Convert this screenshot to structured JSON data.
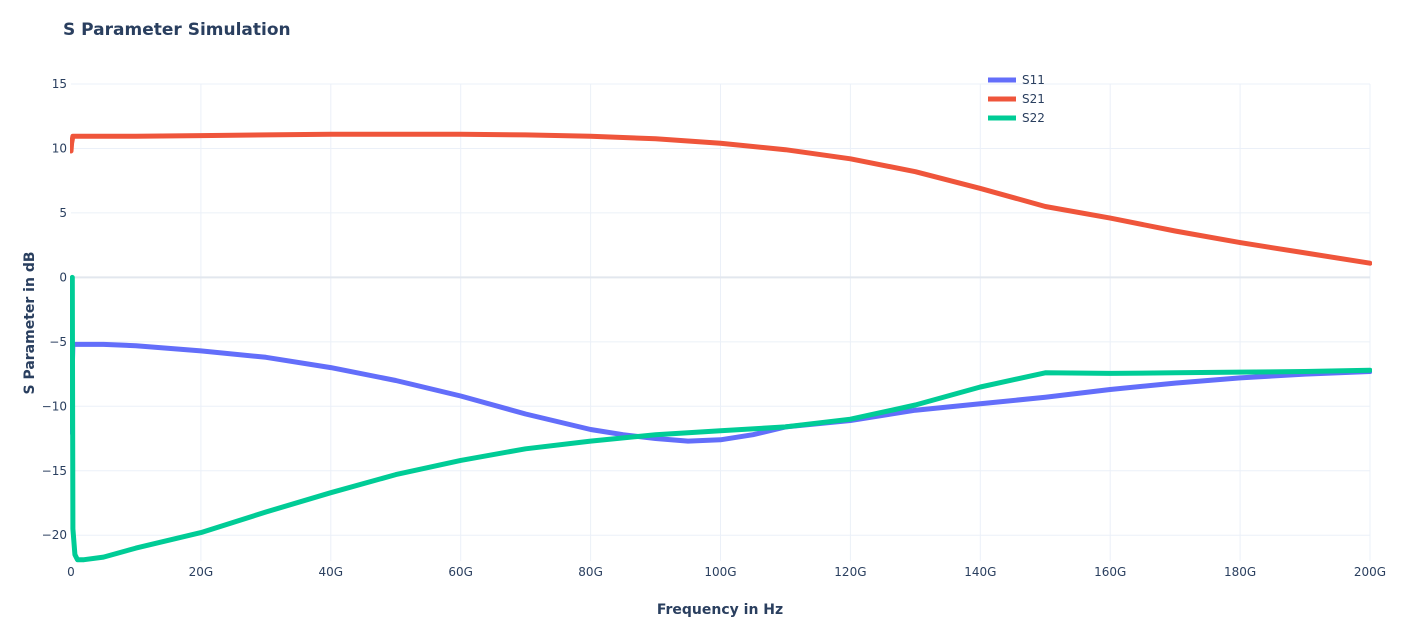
{
  "chart_data": {
    "type": "line",
    "title": "S Parameter Simulation",
    "xlabel": "Frequency in Hz",
    "ylabel": "S Parameter in dB",
    "xlim": [
      0,
      200
    ],
    "ylim": [
      -22,
      15
    ],
    "x_ticks": [
      {
        "value": 0,
        "label": "0"
      },
      {
        "value": 20,
        "label": "20G"
      },
      {
        "value": 40,
        "label": "40G"
      },
      {
        "value": 60,
        "label": "60G"
      },
      {
        "value": 80,
        "label": "80G"
      },
      {
        "value": 100,
        "label": "100G"
      },
      {
        "value": 120,
        "label": "120G"
      },
      {
        "value": 140,
        "label": "140G"
      },
      {
        "value": 160,
        "label": "160G"
      },
      {
        "value": 180,
        "label": "180G"
      },
      {
        "value": 200,
        "label": "200G"
      }
    ],
    "y_ticks": [
      {
        "value": 15,
        "label": "15"
      },
      {
        "value": 10,
        "label": "10"
      },
      {
        "value": 5,
        "label": "5"
      },
      {
        "value": 0,
        "label": "0"
      },
      {
        "value": -5,
        "label": "−5"
      },
      {
        "value": -10,
        "label": "−10"
      },
      {
        "value": -15,
        "label": "−15"
      },
      {
        "value": -20,
        "label": "−20"
      }
    ],
    "grid": true,
    "legend_position": "top-right",
    "series": [
      {
        "name": "S11",
        "color": "#636efa",
        "x": [
          0,
          0.1,
          0.3,
          5,
          10,
          20,
          30,
          40,
          50,
          60,
          70,
          80,
          85,
          90,
          95,
          100,
          105,
          110,
          120,
          130,
          140,
          150,
          160,
          170,
          180,
          190,
          200
        ],
        "y": [
          -12,
          -9,
          -5.2,
          -5.2,
          -5.3,
          -5.7,
          -6.2,
          -7.0,
          -8.0,
          -9.2,
          -10.6,
          -11.8,
          -12.2,
          -12.5,
          -12.7,
          -12.6,
          -12.2,
          -11.6,
          -11.1,
          -10.3,
          -9.8,
          -9.3,
          -8.7,
          -8.2,
          -7.8,
          -7.5,
          -7.3
        ]
      },
      {
        "name": "S21",
        "color": "#ef553b",
        "x": [
          0,
          0.1,
          0.3,
          5,
          10,
          20,
          30,
          40,
          50,
          60,
          70,
          80,
          90,
          100,
          110,
          120,
          130,
          140,
          150,
          160,
          170,
          180,
          190,
          200
        ],
        "y": [
          9.8,
          10.4,
          10.95,
          10.95,
          10.95,
          11.0,
          11.05,
          11.1,
          11.1,
          11.1,
          11.05,
          10.95,
          10.75,
          10.4,
          9.9,
          9.2,
          8.2,
          6.9,
          5.5,
          4.6,
          3.6,
          2.7,
          1.9,
          1.1
        ]
      },
      {
        "name": "S22",
        "color": "#00cc96",
        "x": [
          0,
          0.1,
          0.2,
          0.3,
          0.6,
          1,
          2,
          5,
          10,
          20,
          30,
          40,
          50,
          60,
          70,
          80,
          90,
          100,
          110,
          120,
          130,
          140,
          150,
          160,
          170,
          180,
          190,
          200
        ],
        "y": [
          -11.5,
          -5,
          0,
          -19.5,
          -21.5,
          -21.9,
          -21.9,
          -21.7,
          -21,
          -19.8,
          -18.2,
          -16.7,
          -15.3,
          -14.2,
          -13.3,
          -12.7,
          -12.2,
          -11.9,
          -11.6,
          -11.0,
          -9.9,
          -8.5,
          -7.4,
          -7.45,
          -7.4,
          -7.35,
          -7.3,
          -7.2
        ]
      }
    ]
  }
}
